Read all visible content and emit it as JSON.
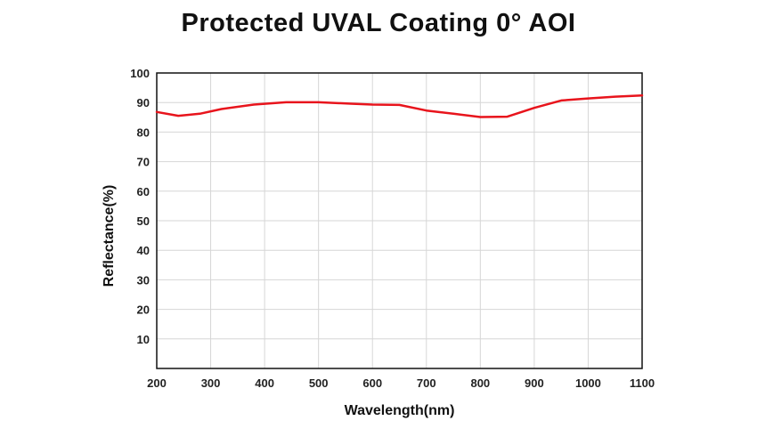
{
  "chart_data": {
    "type": "line",
    "title": "Protected UVAL Coating 0° AOI",
    "xlabel": "Wavelength(nm)",
    "ylabel": "Reflectance(%)",
    "xlim": [
      200,
      1100
    ],
    "ylim": [
      0,
      100
    ],
    "x_ticks": [
      200,
      300,
      400,
      500,
      600,
      700,
      800,
      900,
      1000,
      1100
    ],
    "y_ticks": [
      10,
      20,
      30,
      40,
      50,
      60,
      70,
      80,
      90,
      100
    ],
    "grid": true,
    "series_color": "#e8141c",
    "series": [
      {
        "x": [
          200,
          240,
          280,
          320,
          380,
          440,
          500,
          560,
          600,
          650,
          700,
          750,
          800,
          850,
          900,
          950,
          1000,
          1050,
          1100
        ],
        "y": [
          86.8,
          85.5,
          86.2,
          87.8,
          89.3,
          90.1,
          90.1,
          89.6,
          89.3,
          89.2,
          87.3,
          86.2,
          85.1,
          85.2,
          88.2,
          90.7,
          91.4,
          92.0,
          92.4
        ]
      }
    ]
  }
}
